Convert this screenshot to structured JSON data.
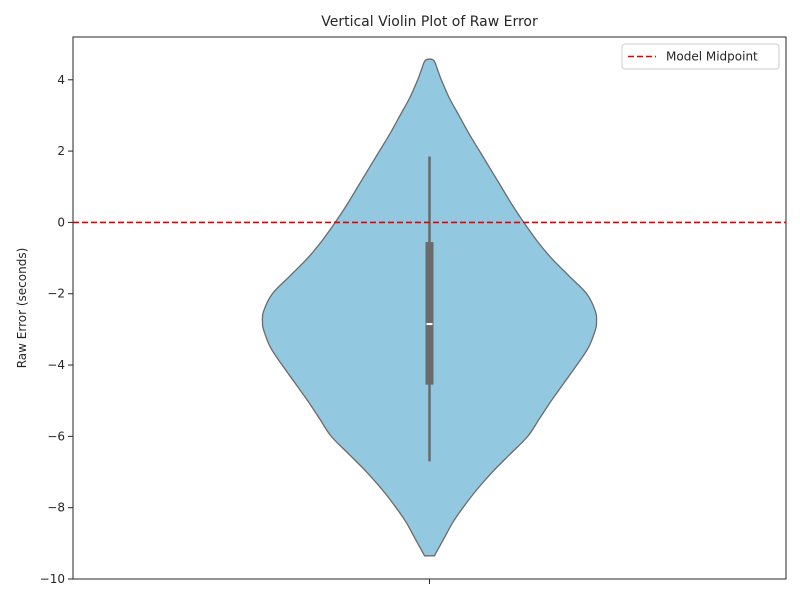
{
  "chart_data": {
    "type": "violin",
    "title": "Vertical Violin Plot of Raw Error",
    "xlabel": "",
    "ylabel": "Raw Error (seconds)",
    "ylim": [
      -10,
      5.2
    ],
    "yticks": [
      4,
      2,
      0,
      -2,
      -4,
      -6,
      -8,
      -10
    ],
    "ytick_labels": [
      "4",
      "2",
      "0",
      "−2",
      "−4",
      "−6",
      "−8",
      "−10"
    ],
    "grid": false,
    "legend_position": "upper-right",
    "violin": {
      "color": "#92c8e0",
      "edge_color": "#6b6b6b",
      "y_min": -9.35,
      "y_max": 4.55,
      "density_profile": [
        [
          -9.35,
          0.05
        ],
        [
          -9.1,
          0.1
        ],
        [
          -8.8,
          0.16
        ],
        [
          -8.4,
          0.24
        ],
        [
          -8.0,
          0.34
        ],
        [
          -7.5,
          0.48
        ],
        [
          -7.0,
          0.64
        ],
        [
          -6.5,
          0.82
        ],
        [
          -6.0,
          1.0
        ],
        [
          -5.5,
          1.12
        ],
        [
          -5.0,
          1.24
        ],
        [
          -4.5,
          1.37
        ],
        [
          -4.0,
          1.5
        ],
        [
          -3.5,
          1.62
        ],
        [
          -3.0,
          1.69
        ],
        [
          -2.8,
          1.7
        ],
        [
          -2.5,
          1.69
        ],
        [
          -2.0,
          1.6
        ],
        [
          -1.5,
          1.42
        ],
        [
          -1.0,
          1.24
        ],
        [
          -0.5,
          1.09
        ],
        [
          0.0,
          0.96
        ],
        [
          0.5,
          0.84
        ],
        [
          1.0,
          0.73
        ],
        [
          1.5,
          0.62
        ],
        [
          2.0,
          0.51
        ],
        [
          2.5,
          0.4
        ],
        [
          3.0,
          0.3
        ],
        [
          3.5,
          0.2
        ],
        [
          4.0,
          0.12
        ],
        [
          4.3,
          0.08
        ],
        [
          4.55,
          0.04
        ]
      ],
      "whisker_low": -6.7,
      "whisker_high": 1.85,
      "q1": -4.55,
      "q3": -0.55,
      "median": -2.85
    },
    "reference_line": {
      "name": "Model Midpoint",
      "y": 0,
      "color": "#e60000",
      "style": "dashed"
    }
  }
}
